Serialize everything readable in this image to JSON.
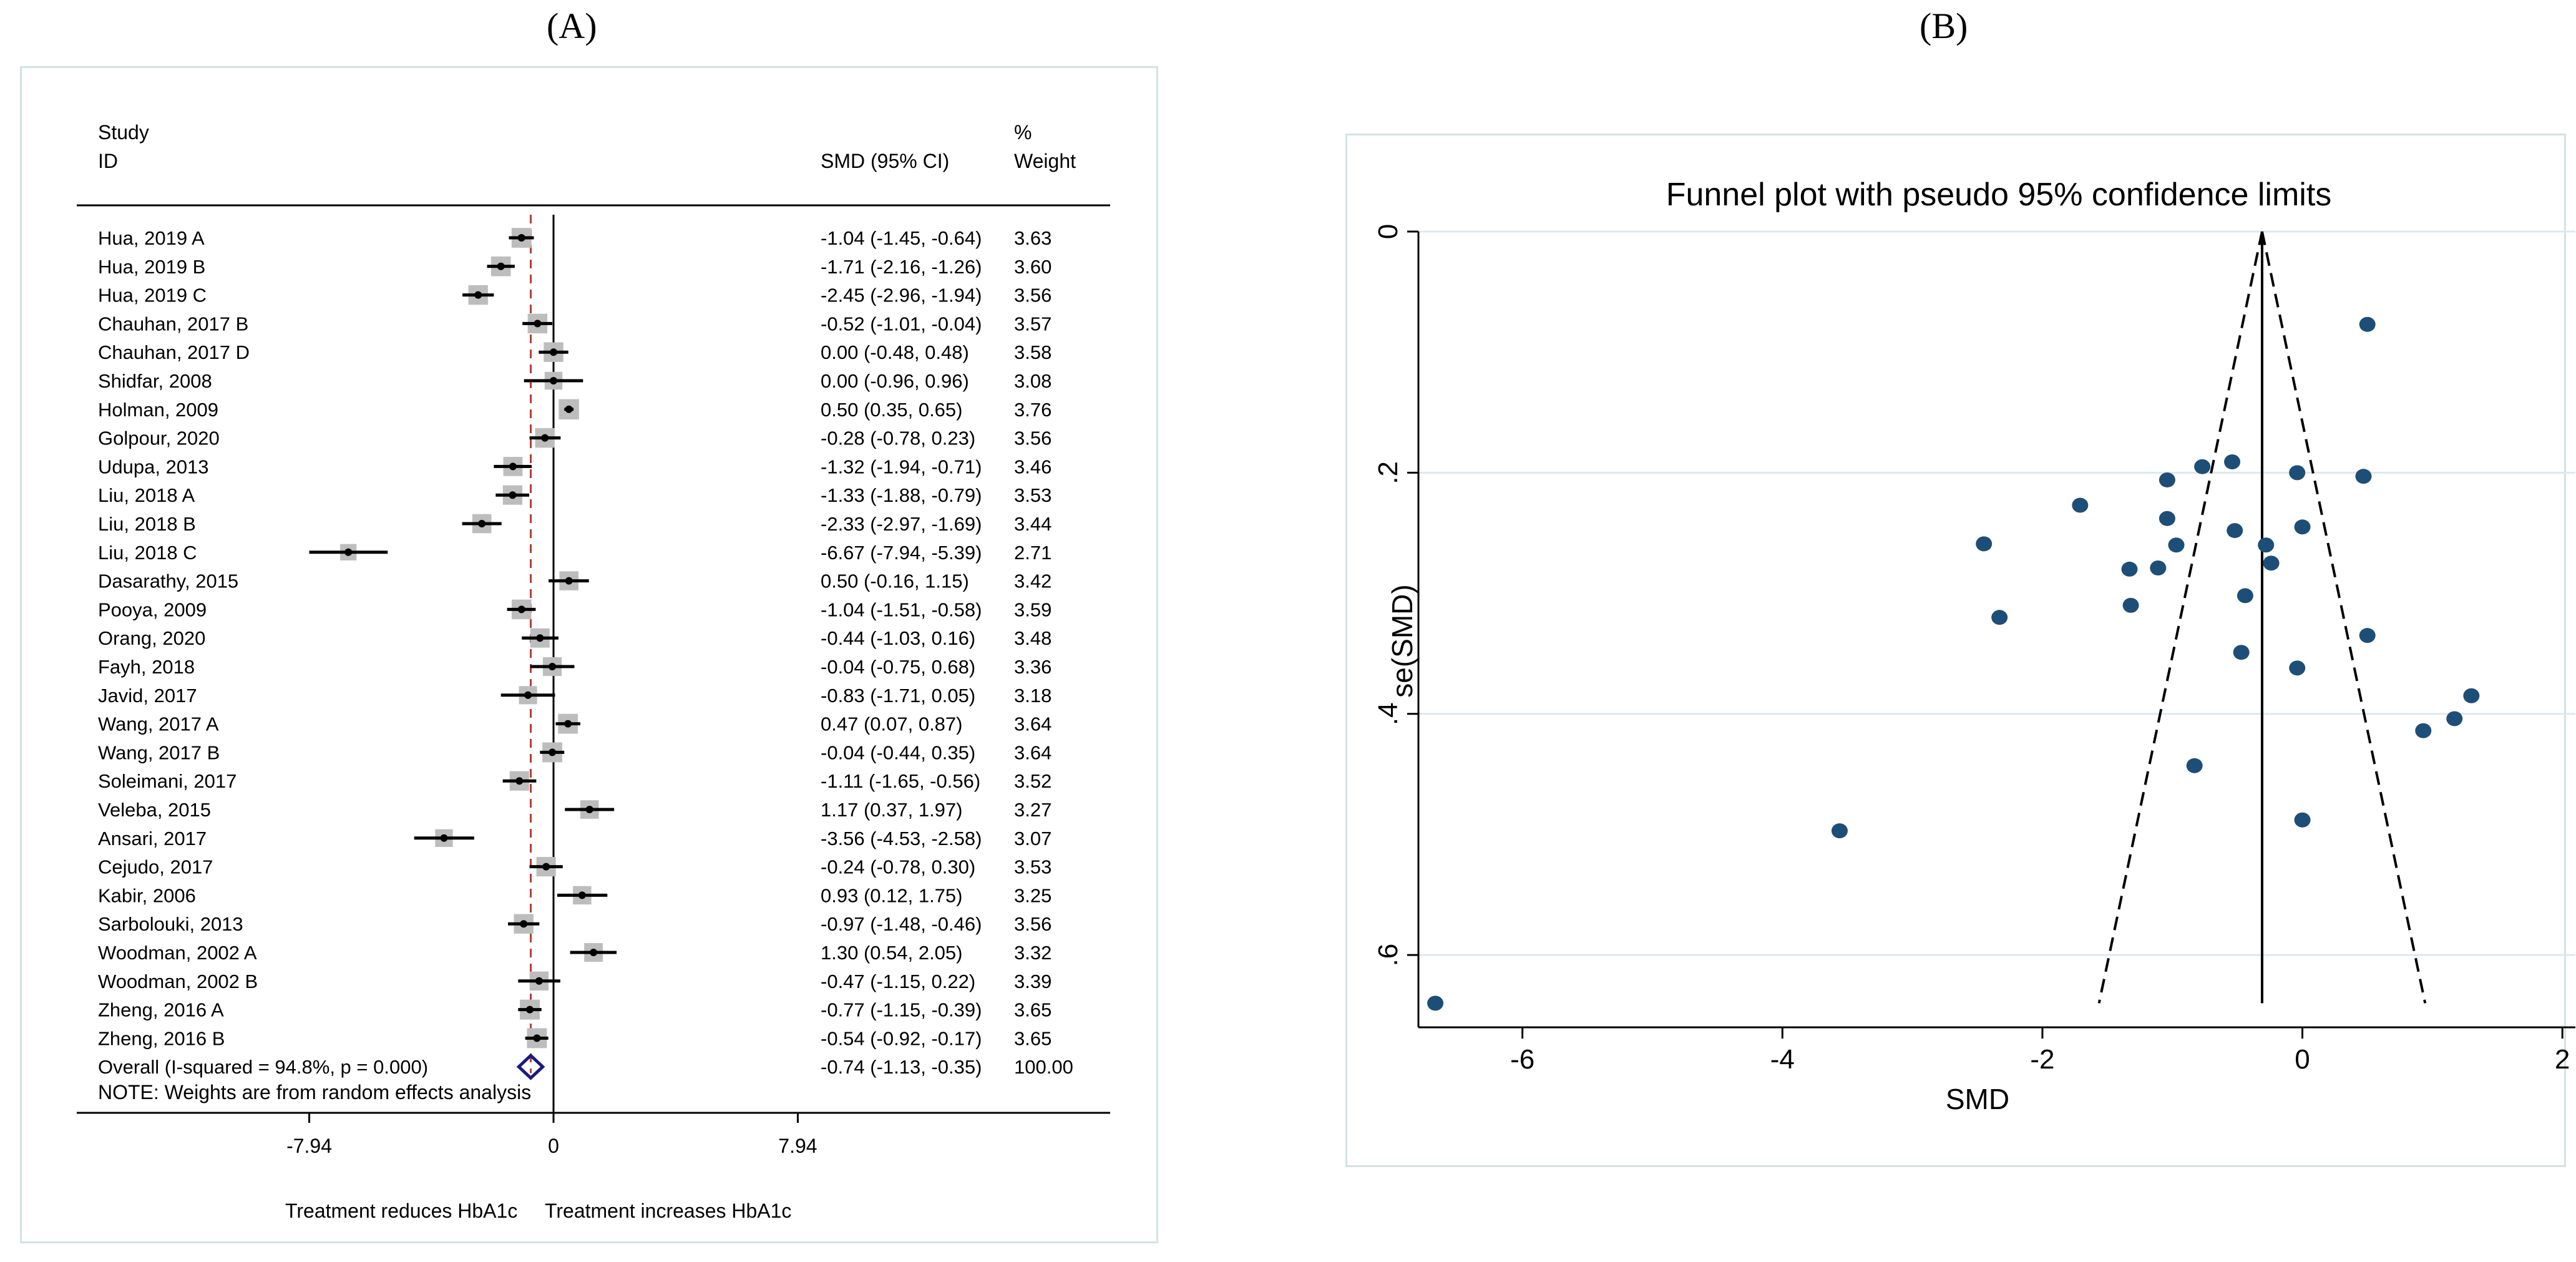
{
  "panel_a_label": "(A)",
  "panel_b_label": "(B)",
  "chart_data": [
    {
      "type": "forest",
      "header": {
        "study_line1": "Study",
        "study_line2": "ID",
        "effect": "SMD (95% CI)",
        "weight_line1": "%",
        "weight_line2": "Weight"
      },
      "studies": [
        {
          "name": "Hua, 2019 A",
          "smd": -1.04,
          "lo": -1.45,
          "hi": -0.64,
          "weight": 3.63,
          "text": "-1.04 (-1.45, -0.64)",
          "wtext": "3.63"
        },
        {
          "name": "Hua, 2019 B",
          "smd": -1.71,
          "lo": -2.16,
          "hi": -1.26,
          "weight": 3.6,
          "text": "-1.71 (-2.16, -1.26)",
          "wtext": "3.60"
        },
        {
          "name": "Hua, 2019 C",
          "smd": -2.45,
          "lo": -2.96,
          "hi": -1.94,
          "weight": 3.56,
          "text": "-2.45 (-2.96, -1.94)",
          "wtext": "3.56"
        },
        {
          "name": "Chauhan, 2017 B",
          "smd": -0.52,
          "lo": -1.01,
          "hi": -0.04,
          "weight": 3.57,
          "text": "-0.52 (-1.01, -0.04)",
          "wtext": "3.57"
        },
        {
          "name": "Chauhan, 2017 D",
          "smd": 0.0,
          "lo": -0.48,
          "hi": 0.48,
          "weight": 3.58,
          "text": "0.00 (-0.48, 0.48)",
          "wtext": "3.58"
        },
        {
          "name": "Shidfar, 2008",
          "smd": 0.0,
          "lo": -0.96,
          "hi": 0.96,
          "weight": 3.08,
          "text": "0.00 (-0.96, 0.96)",
          "wtext": "3.08"
        },
        {
          "name": "Holman, 2009",
          "smd": 0.5,
          "lo": 0.35,
          "hi": 0.65,
          "weight": 3.76,
          "text": "0.50 (0.35, 0.65)",
          "wtext": "3.76"
        },
        {
          "name": "Golpour, 2020",
          "smd": -0.28,
          "lo": -0.78,
          "hi": 0.23,
          "weight": 3.56,
          "text": "-0.28 (-0.78, 0.23)",
          "wtext": "3.56"
        },
        {
          "name": "Udupa, 2013",
          "smd": -1.32,
          "lo": -1.94,
          "hi": -0.71,
          "weight": 3.46,
          "text": "-1.32 (-1.94, -0.71)",
          "wtext": "3.46"
        },
        {
          "name": "Liu, 2018 A",
          "smd": -1.33,
          "lo": -1.88,
          "hi": -0.79,
          "weight": 3.53,
          "text": "-1.33 (-1.88, -0.79)",
          "wtext": "3.53"
        },
        {
          "name": "Liu, 2018 B",
          "smd": -2.33,
          "lo": -2.97,
          "hi": -1.69,
          "weight": 3.44,
          "text": "-2.33 (-2.97, -1.69)",
          "wtext": "3.44"
        },
        {
          "name": "Liu, 2018 C",
          "smd": -6.67,
          "lo": -7.94,
          "hi": -5.39,
          "weight": 2.71,
          "text": "-6.67 (-7.94, -5.39)",
          "wtext": "2.71"
        },
        {
          "name": "Dasarathy, 2015",
          "smd": 0.5,
          "lo": -0.16,
          "hi": 1.15,
          "weight": 3.42,
          "text": "0.50 (-0.16, 1.15)",
          "wtext": "3.42"
        },
        {
          "name": "Pooya, 2009",
          "smd": -1.04,
          "lo": -1.51,
          "hi": -0.58,
          "weight": 3.59,
          "text": "-1.04 (-1.51, -0.58)",
          "wtext": "3.59"
        },
        {
          "name": "Orang, 2020",
          "smd": -0.44,
          "lo": -1.03,
          "hi": 0.16,
          "weight": 3.48,
          "text": "-0.44 (-1.03, 0.16)",
          "wtext": "3.48"
        },
        {
          "name": "Fayh, 2018",
          "smd": -0.04,
          "lo": -0.75,
          "hi": 0.68,
          "weight": 3.36,
          "text": "-0.04 (-0.75, 0.68)",
          "wtext": "3.36"
        },
        {
          "name": "Javid, 2017",
          "smd": -0.83,
          "lo": -1.71,
          "hi": 0.05,
          "weight": 3.18,
          "text": "-0.83 (-1.71, 0.05)",
          "wtext": "3.18"
        },
        {
          "name": "Wang, 2017 A",
          "smd": 0.47,
          "lo": 0.07,
          "hi": 0.87,
          "weight": 3.64,
          "text": "0.47 (0.07, 0.87)",
          "wtext": "3.64"
        },
        {
          "name": "Wang, 2017 B",
          "smd": -0.04,
          "lo": -0.44,
          "hi": 0.35,
          "weight": 3.64,
          "text": "-0.04 (-0.44, 0.35)",
          "wtext": "3.64"
        },
        {
          "name": "Soleimani, 2017",
          "smd": -1.11,
          "lo": -1.65,
          "hi": -0.56,
          "weight": 3.52,
          "text": "-1.11 (-1.65, -0.56)",
          "wtext": "3.52"
        },
        {
          "name": "Veleba, 2015",
          "smd": 1.17,
          "lo": 0.37,
          "hi": 1.97,
          "weight": 3.27,
          "text": "1.17 (0.37, 1.97)",
          "wtext": "3.27"
        },
        {
          "name": "Ansari, 2017",
          "smd": -3.56,
          "lo": -4.53,
          "hi": -2.58,
          "weight": 3.07,
          "text": "-3.56 (-4.53, -2.58)",
          "wtext": "3.07"
        },
        {
          "name": "Cejudo, 2017",
          "smd": -0.24,
          "lo": -0.78,
          "hi": 0.3,
          "weight": 3.53,
          "text": "-0.24 (-0.78, 0.30)",
          "wtext": "3.53"
        },
        {
          "name": "Kabir, 2006",
          "smd": 0.93,
          "lo": 0.12,
          "hi": 1.75,
          "weight": 3.25,
          "text": "0.93 (0.12, 1.75)",
          "wtext": "3.25"
        },
        {
          "name": "Sarbolouki, 2013",
          "smd": -0.97,
          "lo": -1.48,
          "hi": -0.46,
          "weight": 3.56,
          "text": "-0.97 (-1.48, -0.46)",
          "wtext": "3.56"
        },
        {
          "name": "Woodman, 2002 A",
          "smd": 1.3,
          "lo": 0.54,
          "hi": 2.05,
          "weight": 3.32,
          "text": "1.30 (0.54, 2.05)",
          "wtext": "3.32"
        },
        {
          "name": "Woodman, 2002 B",
          "smd": -0.47,
          "lo": -1.15,
          "hi": 0.22,
          "weight": 3.39,
          "text": "-0.47 (-1.15, 0.22)",
          "wtext": "3.39"
        },
        {
          "name": "Zheng, 2016 A",
          "smd": -0.77,
          "lo": -1.15,
          "hi": -0.39,
          "weight": 3.65,
          "text": "-0.77 (-1.15, -0.39)",
          "wtext": "3.65"
        },
        {
          "name": "Zheng, 2016 B",
          "smd": -0.54,
          "lo": -0.92,
          "hi": -0.17,
          "weight": 3.65,
          "text": "-0.54 (-0.92, -0.17)",
          "wtext": "3.65"
        }
      ],
      "overall": {
        "name": "Overall  (I-squared = 94.8%, p = 0.000)",
        "smd": -0.74,
        "lo": -1.13,
        "hi": -0.35,
        "weight": 100.0,
        "text": "-0.74 (-1.13, -0.35)",
        "wtext": "100.00"
      },
      "note": "NOTE: Weights are from random effects analysis",
      "xlim": [
        -7.94,
        7.94
      ],
      "xticks": [
        -7.94,
        0,
        7.94
      ],
      "xtick_labels": [
        "-7.94",
        "0",
        "7.94"
      ],
      "xlabel_left": "Treatment reduces HbA1c",
      "xlabel_right": "Treatment increases HbA1c",
      "colors": {
        "ci": "#000000",
        "box": "#bdbdbd",
        "overall_diamond": "#1a1a80",
        "reference": "#c0392b"
      }
    },
    {
      "type": "scatter",
      "title": "Funnel plot with pseudo 95% confidence limits",
      "xlabel": "SMD",
      "ylabel": "se(SMD)",
      "xlim": [
        -6.8,
        2.1
      ],
      "ylim": [
        0,
        0.66
      ],
      "y_reversed": true,
      "xticks": [
        -6,
        -4,
        -2,
        0,
        2
      ],
      "xtick_labels": [
        "-6",
        "-4",
        "-2",
        "0",
        "2"
      ],
      "yticks": [
        0,
        0.2,
        0.4,
        0.6
      ],
      "ytick_labels": [
        "0",
        ".2",
        ".4",
        ".6"
      ],
      "pooled_estimate": -0.31,
      "funnel_bottom_se": 0.64,
      "points": [
        {
          "x": -1.04,
          "y": 0.206
        },
        {
          "x": -1.71,
          "y": 0.227
        },
        {
          "x": -2.45,
          "y": 0.259
        },
        {
          "x": -0.52,
          "y": 0.248
        },
        {
          "x": 0.0,
          "y": 0.245
        },
        {
          "x": 0.0,
          "y": 0.488
        },
        {
          "x": 0.5,
          "y": 0.077
        },
        {
          "x": -0.28,
          "y": 0.26
        },
        {
          "x": -1.32,
          "y": 0.31
        },
        {
          "x": -1.33,
          "y": 0.28
        },
        {
          "x": -2.33,
          "y": 0.32
        },
        {
          "x": -6.67,
          "y": 0.64
        },
        {
          "x": 0.5,
          "y": 0.335
        },
        {
          "x": -1.04,
          "y": 0.238
        },
        {
          "x": -0.44,
          "y": 0.302
        },
        {
          "x": -0.04,
          "y": 0.362
        },
        {
          "x": -0.83,
          "y": 0.443
        },
        {
          "x": 0.47,
          "y": 0.203
        },
        {
          "x": -0.04,
          "y": 0.2
        },
        {
          "x": -1.11,
          "y": 0.279
        },
        {
          "x": 1.17,
          "y": 0.404
        },
        {
          "x": -3.56,
          "y": 0.497
        },
        {
          "x": -0.24,
          "y": 0.275
        },
        {
          "x": 0.93,
          "y": 0.414
        },
        {
          "x": -0.97,
          "y": 0.26
        },
        {
          "x": 1.3,
          "y": 0.385
        },
        {
          "x": -0.47,
          "y": 0.349
        },
        {
          "x": -0.77,
          "y": 0.195
        },
        {
          "x": -0.54,
          "y": 0.191
        }
      ],
      "colors": {
        "point": "#1d4e77",
        "grid": "#dde8ee",
        "plot_bg": "#ffffff"
      }
    }
  ]
}
